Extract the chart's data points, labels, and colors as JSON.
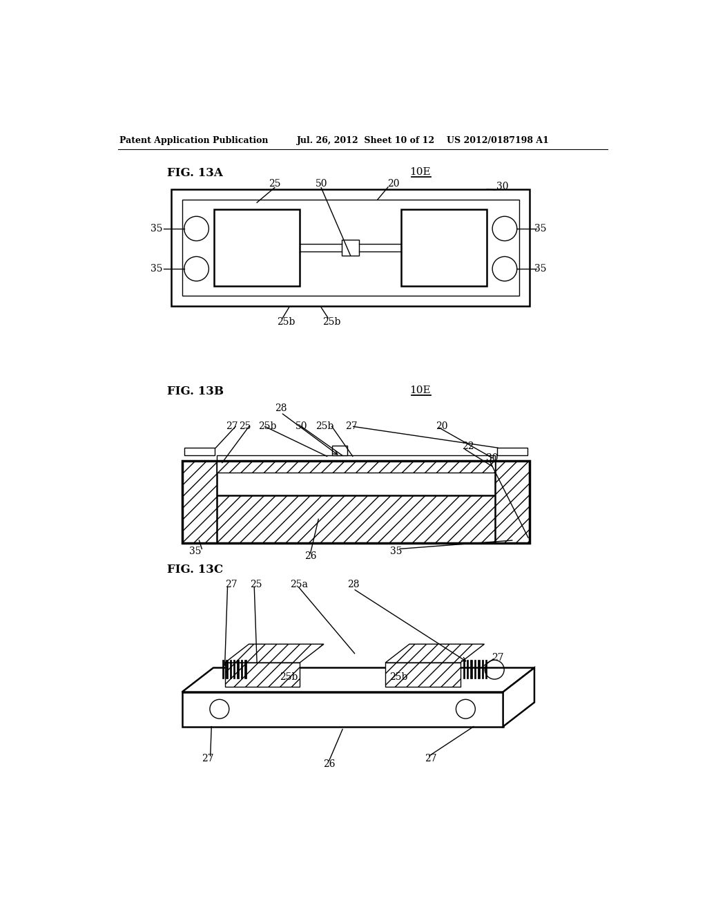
{
  "header_left": "Patent Application Publication",
  "header_mid": "Jul. 26, 2012  Sheet 10 of 12",
  "header_right": "US 2012/0187198 A1",
  "bg_color": "#ffffff",
  "line_color": "#000000"
}
